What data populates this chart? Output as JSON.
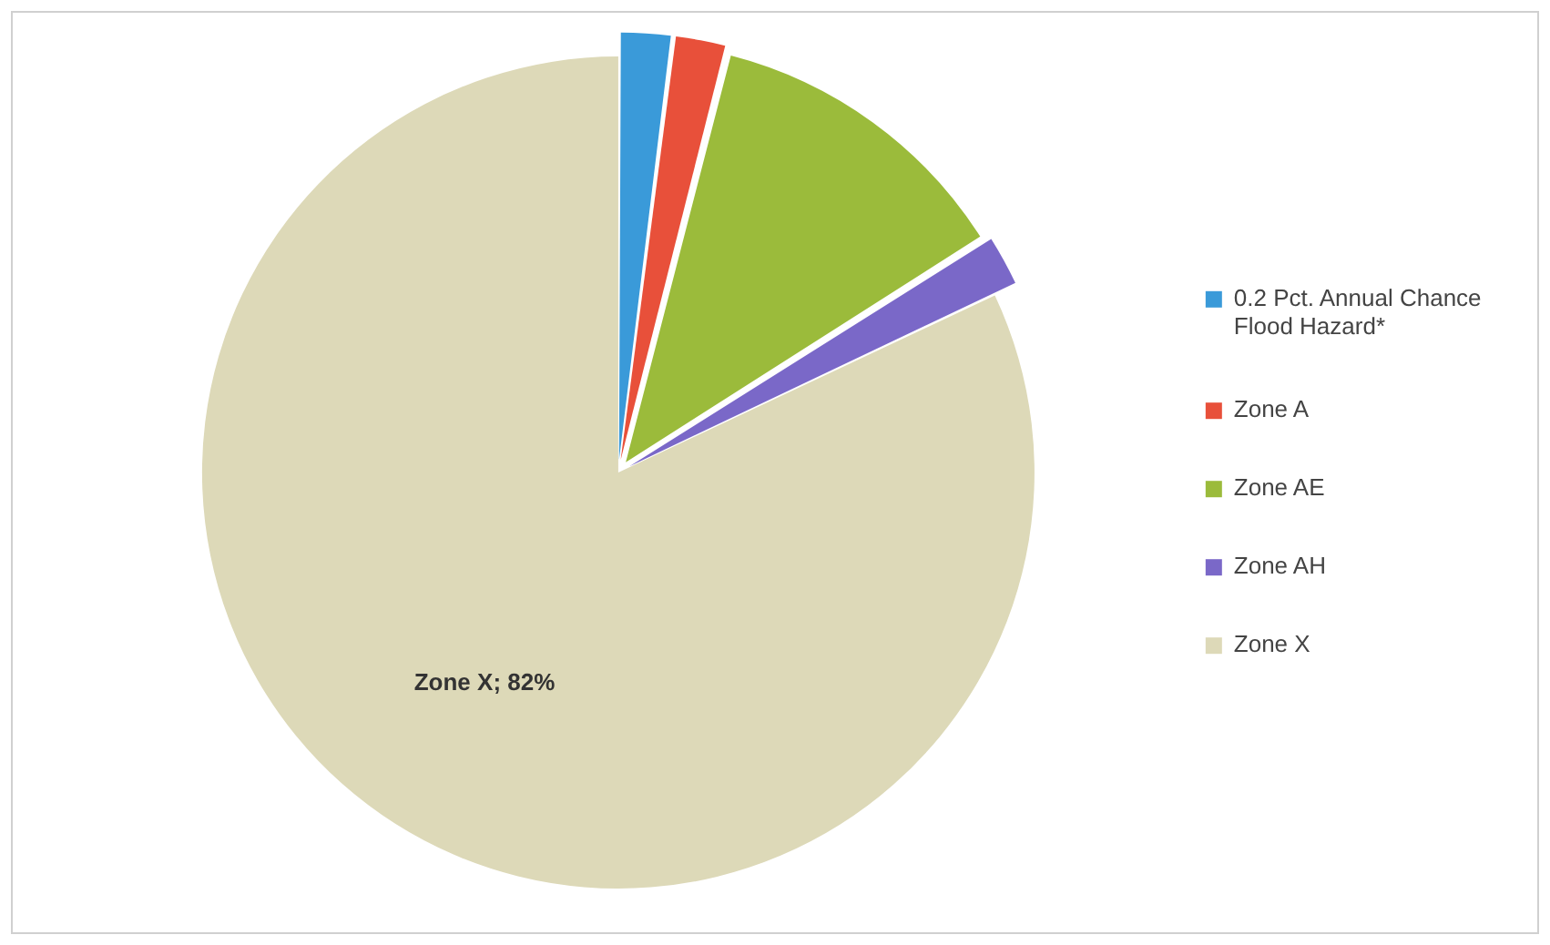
{
  "chart_data": {
    "type": "pie",
    "categories": [
      "0.2 Pct. Annual Chance Flood Hazard*",
      "Zone A",
      "Zone AE",
      "Zone AH",
      "Zone X"
    ],
    "values": [
      2,
      2,
      12,
      2,
      82
    ],
    "colors": [
      "#3a9ad9",
      "#e8503a",
      "#9bbb3b",
      "#7a68c8",
      "#ddd9b8"
    ],
    "value_labels": [
      null,
      null,
      null,
      null,
      "Zone X; 82%"
    ],
    "legend": "right"
  }
}
